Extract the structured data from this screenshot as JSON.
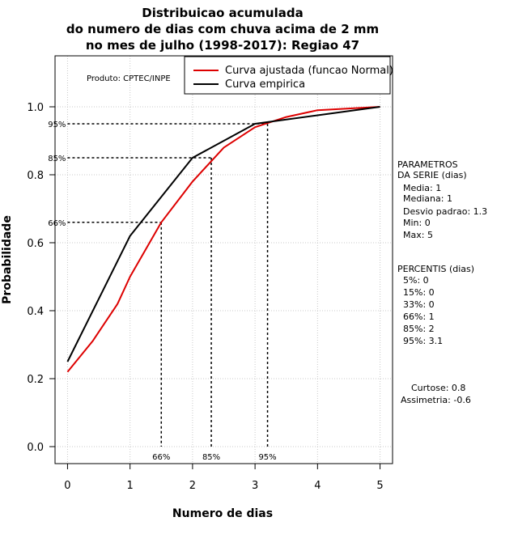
{
  "chart_data": {
    "type": "line",
    "title_lines": [
      "Distribuicao acumulada",
      "do numero de dias com chuva acima de 2 mm",
      "no mes de julho (1998-2017): Regiao 47"
    ],
    "xlabel": "Numero de dias",
    "ylabel": "Probabilidade",
    "xlim": [
      -0.2,
      5.2
    ],
    "ylim": [
      -0.05,
      1.15
    ],
    "x_ticks": [
      0,
      1,
      2,
      3,
      4,
      5
    ],
    "x_tick_labels": [
      "0",
      "1",
      "2",
      "3",
      "4",
      "5"
    ],
    "y_ticks": [
      0.0,
      0.2,
      0.4,
      0.6,
      0.8,
      1.0
    ],
    "y_tick_labels": [
      "0.0",
      "0.2",
      "0.4",
      "0.6",
      "0.8",
      "1.0"
    ],
    "grid": true,
    "product_label": "Produto: CPTEC/INPE",
    "legend": {
      "position": "top-right",
      "entries": [
        {
          "name": "Curva ajustada (funcao Normal)",
          "color": "#dd0000"
        },
        {
          "name": "Curva empirica",
          "color": "#000000"
        }
      ]
    },
    "series": [
      {
        "name": "Curva ajustada (funcao Normal)",
        "color": "#dd0000",
        "x": [
          0,
          0.4,
          0.8,
          1.0,
          1.5,
          2.0,
          2.5,
          3.0,
          3.5,
          4.0,
          4.5,
          5.0
        ],
        "y": [
          0.22,
          0.31,
          0.42,
          0.5,
          0.66,
          0.78,
          0.88,
          0.94,
          0.97,
          0.99,
          0.995,
          1.0
        ]
      },
      {
        "name": "Curva empirica",
        "color": "#000000",
        "x": [
          0,
          1,
          2,
          3,
          4,
          5
        ],
        "y": [
          0.25,
          0.62,
          0.85,
          0.95,
          0.975,
          1.0
        ]
      }
    ],
    "percentile_markers": [
      {
        "label": "66%",
        "x": 1.5,
        "y": 0.66
      },
      {
        "label": "85%",
        "x": 2.3,
        "y": 0.85
      },
      {
        "label": "95%",
        "x": 3.2,
        "y": 0.95
      }
    ],
    "parametros": {
      "header": [
        "PARAMETROS",
        "DA SERIE (dias)"
      ],
      "lines": [
        "Media: 1",
        "Mediana: 1",
        "Desvio padrao: 1.3",
        "Min: 0",
        "Max: 5"
      ]
    },
    "percentis": {
      "header": "PERCENTIS (dias)",
      "lines": [
        "5%: 0",
        "15%: 0",
        "33%: 0",
        "66%: 1",
        "85%: 2",
        "95%: 3.1"
      ]
    },
    "extras": [
      "Curtose: 0.8",
      "Assimetria: -0.6"
    ]
  }
}
